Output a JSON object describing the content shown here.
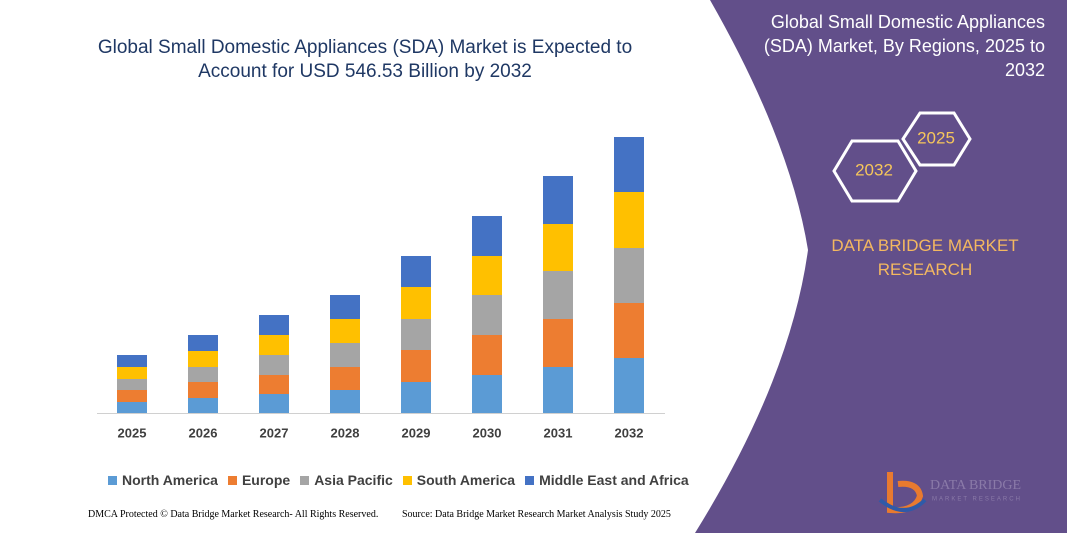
{
  "chart_data": {
    "type": "stacked_bar",
    "title": "Global Small Domestic Appliances (SDA) Market is Expected to Account for USD 546.53 Billion by 2032",
    "categories": [
      "2025",
      "2026",
      "2027",
      "2028",
      "2029",
      "2030",
      "2031",
      "2032"
    ],
    "series": [
      {
        "name": "North America",
        "color": "#5b9bd5",
        "values": [
          11,
          15,
          19,
          23,
          31,
          38,
          46,
          55
        ]
      },
      {
        "name": "Europe",
        "color": "#ed7d31",
        "values": [
          12,
          16,
          19,
          23,
          32,
          40,
          48,
          55
        ]
      },
      {
        "name": "Asia Pacific",
        "color": "#a5a5a5",
        "values": [
          11,
          15,
          20,
          24,
          31,
          40,
          48,
          55
        ]
      },
      {
        "name": "South America",
        "color": "#ffc000",
        "values": [
          12,
          16,
          20,
          24,
          32,
          39,
          47,
          56
        ]
      },
      {
        "name": "Middle East and Africa",
        "color": "#4472c4",
        "values": [
          12,
          16,
          20,
          24,
          31,
          40,
          48,
          55
        ]
      }
    ]
  },
  "panel": {
    "title": "Global Small Domestic Appliances (SDA) Market, By Regions, 2025 to 2032",
    "hex_back": "2025",
    "hex_front": "2032",
    "brand": "DATA BRIDGE MARKET RESEARCH",
    "logo_name": "DATA BRIDGE",
    "logo_tagline": "MARKET RESEARCH"
  },
  "footer": {
    "left": "DMCA Protected © Data Bridge Market Research- All Rights Reserved.",
    "right": "Source: Data Bridge Market Research Market Analysis Study 2025"
  }
}
